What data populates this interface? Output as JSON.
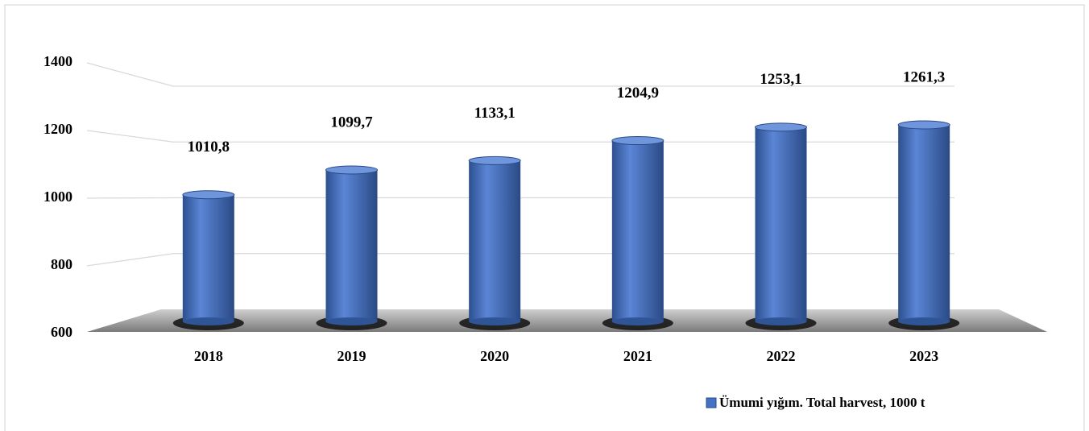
{
  "chart_data": {
    "type": "bar",
    "categories": [
      "2018",
      "2019",
      "2020",
      "2021",
      "2022",
      "2023"
    ],
    "series": [
      {
        "name": "Ümumi yığım.  Total harvest, 1000 t",
        "color": "#4472c4",
        "values": [
          1010.8,
          1099.7,
          1133.1,
          1204.9,
          1253.1,
          1261.3
        ],
        "value_labels": [
          "1010,8",
          "1099,7",
          "1133,1",
          "1204,9",
          "1253,1",
          "1261,3"
        ]
      }
    ],
    "ylim": [
      600,
      1400
    ],
    "yticks": [
      600,
      800,
      1000,
      1200,
      1400
    ],
    "grid": true
  }
}
